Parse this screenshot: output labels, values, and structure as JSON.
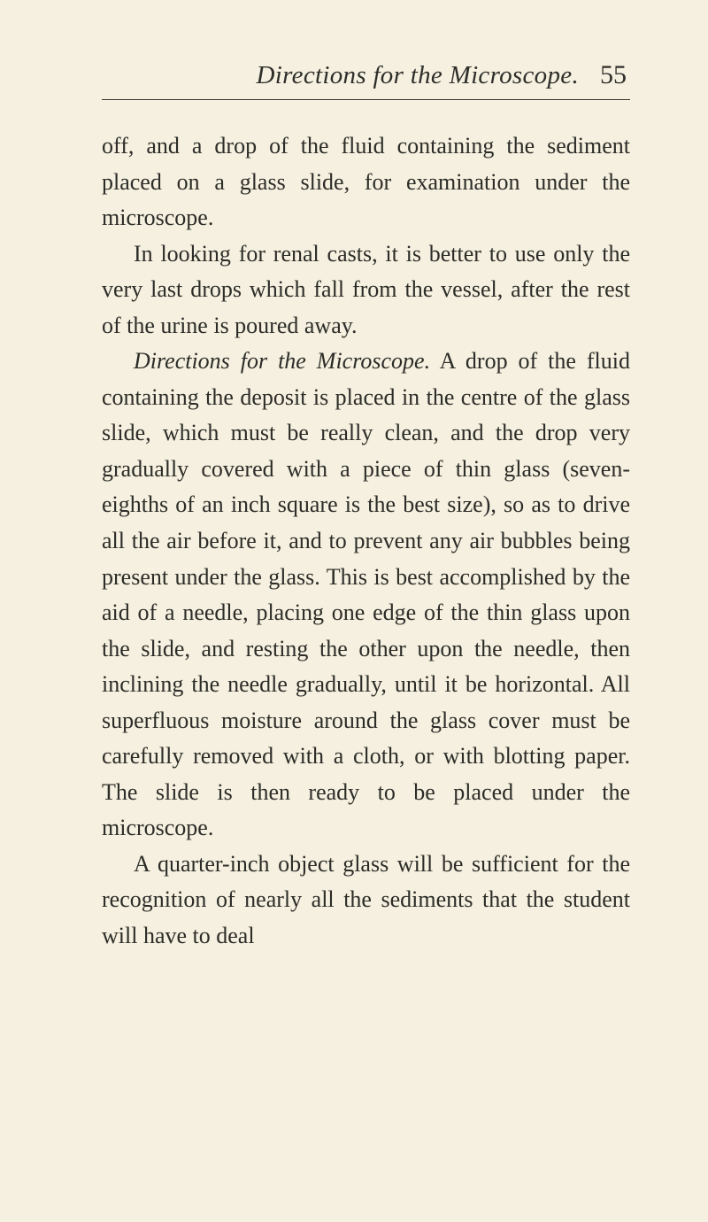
{
  "header": {
    "title": "Directions for the Microscope.",
    "page_number": "55"
  },
  "paragraphs": {
    "p1": "off, and a drop of the fluid containing the sediment placed on a glass slide, for examina­tion under the microscope.",
    "p2": "In looking for renal casts, it is better to use only the very last drops which fall from the vessel, after the rest of the urine is poured away.",
    "p3_lead": "Directions for the Microscope.",
    "p3_body": " A drop of the fluid containing the deposit is placed in the centre of the glass slide, which must be really clean, and the drop very gradually covered with a piece of thin glass (seven-eighths of an inch square is the best size), so as to drive all the air before it, and to pre­vent any air bubbles being present under the glass. This is best accomplished by the aid of a needle, placing one edge of the thin glass upon the slide, and resting the other upon the needle, then inclining the needle gradually, until it be horizontal. All super­fluous moisture around the glass cover must be carefully removed with a cloth, or with blotting paper. The slide is then ready to be placed under the microscope.",
    "p4": "A quarter-inch object glass will be suffi­cient for the recognition of nearly all the sediments that the student will have to deal"
  },
  "colors": {
    "background": "#f5f0df",
    "text": "#2c2c28",
    "rule": "#3a3a35"
  },
  "typography": {
    "header_fontsize": 29,
    "pagenum_fontsize": 30,
    "body_fontsize": 26
  }
}
